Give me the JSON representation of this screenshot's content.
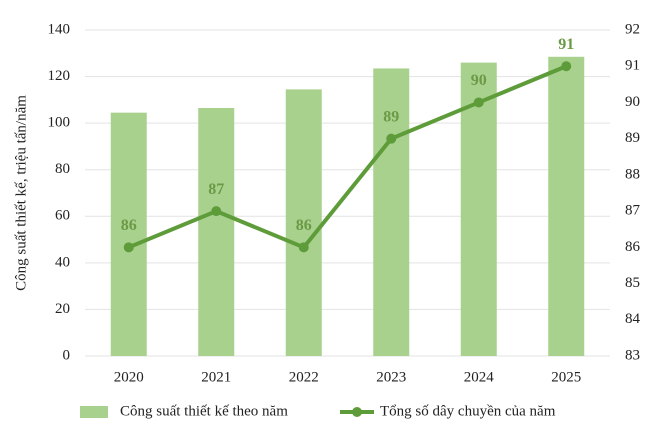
{
  "chart_data": {
    "type": "bar_line",
    "categories": [
      "2020",
      "2021",
      "2022",
      "2023",
      "2024",
      "2025"
    ],
    "y_label": "Công suất thiết kế, triệu tấn/năm",
    "series": [
      {
        "name": "Công suất thiết kế theo năm",
        "color": "#a9d18e",
        "type": "bar",
        "values": [
          104.5,
          106.5,
          114.5,
          123.5,
          126,
          128.5
        ]
      },
      {
        "name": "Tổng số dây chuyền của năm",
        "color": "#5e9c3a",
        "type": "line",
        "axis": "y2",
        "values": [
          86,
          87,
          86,
          89,
          90,
          91
        ]
      }
    ],
    "ylim": [
      0,
      140
    ],
    "yticks": [
      0,
      20,
      40,
      60,
      80,
      100,
      120,
      140
    ],
    "y2lim": [
      83,
      92
    ],
    "y2ticks": [
      83,
      84,
      85,
      86,
      87,
      88,
      89,
      90,
      91,
      92
    ],
    "grid": true,
    "legend": "bottom"
  }
}
